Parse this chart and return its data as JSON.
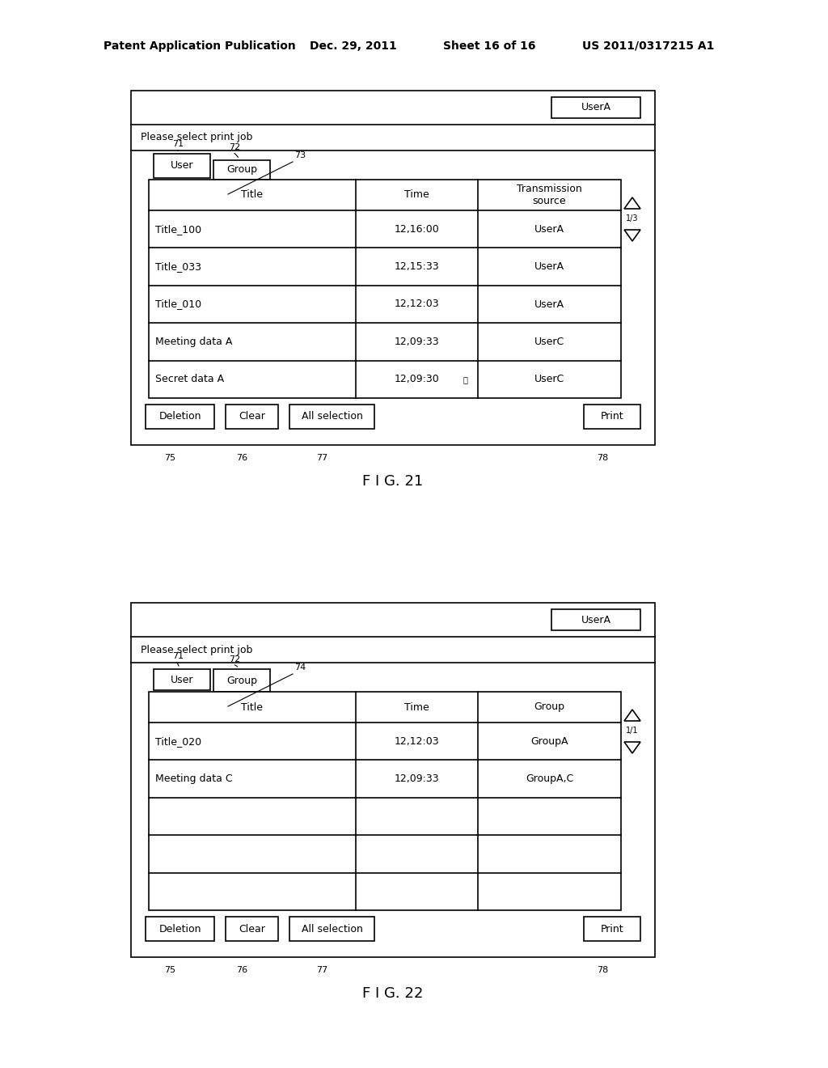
{
  "header_text": "Patent Application Publication",
  "header_date": "Dec. 29, 2011",
  "header_sheet": "Sheet 16 of 16",
  "header_patent": "US 2011/0317215 A1",
  "fig21_label": "F I G. 21",
  "fig22_label": "F I G. 22",
  "fig21_userA": "UserA",
  "fig21_please": "Please select print job",
  "fig21_tab1": "User",
  "fig21_tab2": "Group",
  "fig21_tab1_num": "71",
  "fig21_tab2_num": "72",
  "fig21_area_num": "73",
  "fig21_col1": "Title",
  "fig21_col2": "Time",
  "fig21_col3": "Transmission\nsource",
  "fig21_rows": [
    [
      "Title_100",
      "12,16:00",
      "UserA"
    ],
    [
      "Title_033",
      "12,15:33",
      "UserA"
    ],
    [
      "Title_010",
      "12,12:03",
      "UserA"
    ],
    [
      "Meeting data A",
      "12,09:33",
      "UserC"
    ],
    [
      "Secret data A",
      "12,09:30",
      "UserC"
    ]
  ],
  "fig21_page": "1/3",
  "fig21_btn1": "Deletion",
  "fig21_btn2": "Clear",
  "fig21_btn3": "All selection",
  "fig21_btn4": "Print",
  "fig21_btn1_num": "75",
  "fig21_btn2_num": "76",
  "fig21_btn3_num": "77",
  "fig21_btn4_num": "78",
  "fig22_userA": "UserA",
  "fig22_please": "Please select print job",
  "fig22_tab1": "User",
  "fig22_tab2": "Group",
  "fig22_tab1_num": "71",
  "fig22_tab2_num": "72",
  "fig22_area_num": "74",
  "fig22_col1": "Title",
  "fig22_col2": "Time",
  "fig22_col3": "Group",
  "fig22_rows": [
    [
      "Title_020",
      "12,12:03",
      "GroupA"
    ],
    [
      "Meeting data C",
      "12,09:33",
      "GroupA,C"
    ],
    [
      "",
      "",
      ""
    ],
    [
      "",
      "",
      ""
    ],
    [
      "",
      "",
      ""
    ]
  ],
  "fig22_page": "1/1",
  "fig22_btn1": "Deletion",
  "fig22_btn2": "Clear",
  "fig22_btn3": "All selection",
  "fig22_btn4": "Print",
  "fig22_btn1_num": "75",
  "fig22_btn2_num": "76",
  "fig22_btn3_num": "77",
  "fig22_btn4_num": "78",
  "bg_color": "#ffffff",
  "line_color": "#000000"
}
